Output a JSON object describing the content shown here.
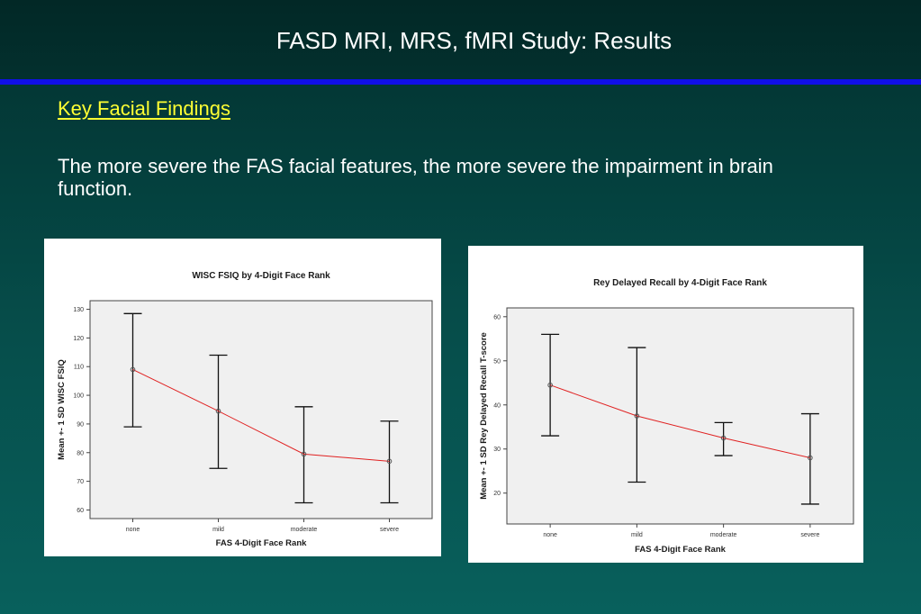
{
  "slide": {
    "title": "FASD MRI, MRS, fMRI Study: Results",
    "subtitle": "Key Facial Findings",
    "body": "The more severe the FAS facial features, the more severe the impairment in brain function."
  },
  "colors": {
    "background": "#064e4b",
    "rule": "#1010e8",
    "subtitle": "#ffff33",
    "mean_line": "#e02020",
    "plot_bg": "#f0f0f0"
  },
  "chart_data": [
    {
      "type": "line",
      "subtype": "error-bar",
      "title": "WISC FSIQ by 4-Digit Face Rank",
      "xlabel": "FAS 4-Digit Face Rank",
      "ylabel": "Mean +- 1 SD WISC FSIQ",
      "categories": [
        "none",
        "mild",
        "moderate",
        "severe"
      ],
      "series": [
        {
          "mean": [
            109,
            94.5,
            79.5,
            77
          ],
          "upper": [
            128.5,
            114,
            96,
            91
          ],
          "lower": [
            89,
            74.5,
            62.5,
            62.5
          ]
        }
      ],
      "ylim": [
        57,
        133
      ],
      "yticks": [
        60,
        70,
        80,
        90,
        100,
        110,
        120,
        130
      ],
      "grid": false,
      "legend": "none"
    },
    {
      "type": "line",
      "subtype": "error-bar",
      "title": "Rey Delayed Recall by 4-Digit Face Rank",
      "xlabel": "FAS 4-Digit Face Rank",
      "ylabel": "Mean +- 1 SD Rey Delayed Recall T-score",
      "categories": [
        "none",
        "mild",
        "moderate",
        "severe"
      ],
      "series": [
        {
          "mean": [
            44.5,
            37.5,
            32.5,
            28
          ],
          "upper": [
            56,
            53,
            36,
            38
          ],
          "lower": [
            33,
            22.5,
            28.5,
            17.5
          ]
        }
      ],
      "ylim": [
        13,
        62
      ],
      "yticks": [
        20,
        30,
        40,
        50,
        60
      ],
      "grid": false,
      "legend": "none"
    }
  ]
}
